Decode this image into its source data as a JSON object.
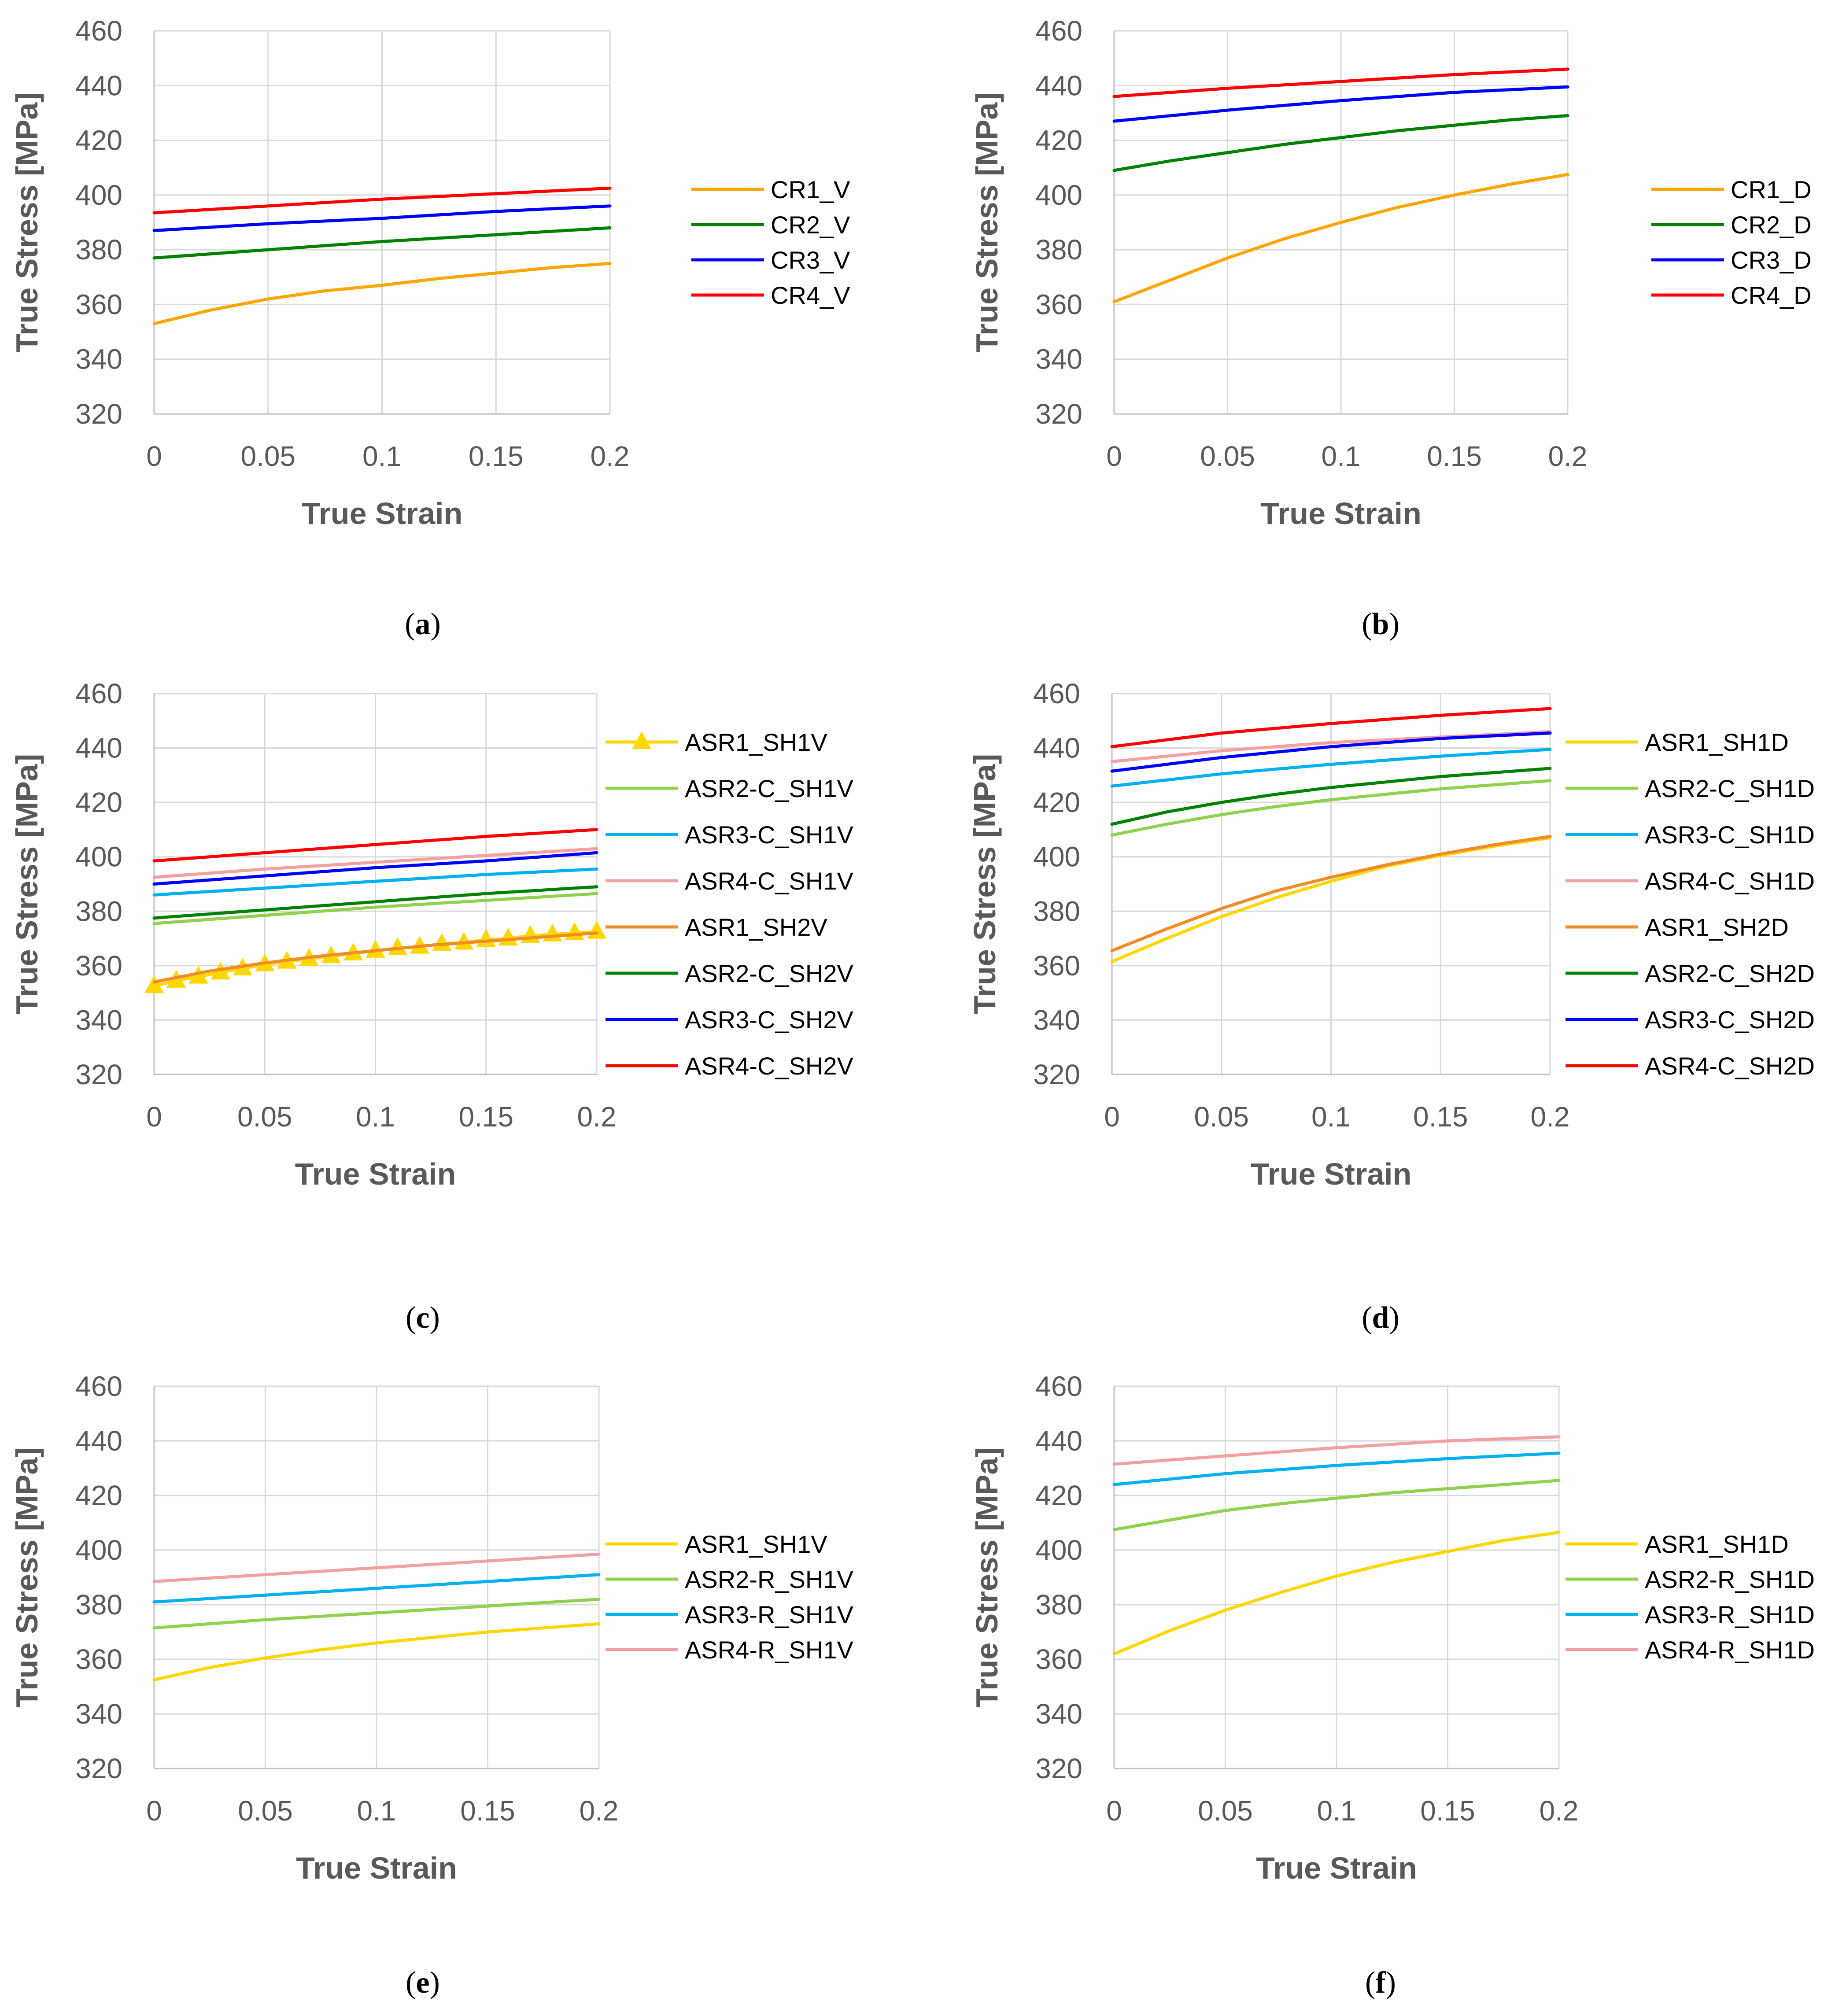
{
  "chart_data": [
    {
      "type": "line",
      "caption_letter": "a",
      "xlabel": "True Strain",
      "ylabel": "True Stress [MPa]",
      "xlim": [
        0,
        0.2
      ],
      "ylim": [
        320,
        460
      ],
      "x_ticks": [
        "0",
        "0.05",
        "0.1",
        "0.15",
        "0.2"
      ],
      "y_ticks": [
        "320",
        "340",
        "360",
        "380",
        "400",
        "420",
        "440",
        "460"
      ],
      "grid": true,
      "legend_position": "right",
      "series": [
        {
          "name": "CR1_V",
          "color": "#ffa500",
          "x": [
            0,
            0.025,
            0.05,
            0.075,
            0.1,
            0.125,
            0.15,
            0.175,
            0.2
          ],
          "values": [
            353,
            358,
            362,
            365,
            367,
            369.5,
            371.5,
            373.5,
            375
          ]
        },
        {
          "name": "CR2_V",
          "color": "#008000",
          "x": [
            0,
            0.05,
            0.1,
            0.15,
            0.2
          ],
          "values": [
            377,
            380,
            383,
            385.5,
            388
          ]
        },
        {
          "name": "CR3_V",
          "color": "#0000ff",
          "x": [
            0,
            0.05,
            0.1,
            0.15,
            0.2
          ],
          "values": [
            387,
            389.5,
            391.5,
            394,
            396
          ]
        },
        {
          "name": "CR4_V",
          "color": "#ff0000",
          "x": [
            0,
            0.05,
            0.1,
            0.15,
            0.2
          ],
          "values": [
            393.5,
            396,
            398.5,
            400.5,
            402.5
          ]
        }
      ]
    },
    {
      "type": "line",
      "caption_letter": "b",
      "xlabel": "True Strain",
      "ylabel": "True Stress [MPa]",
      "xlim": [
        0,
        0.2
      ],
      "ylim": [
        320,
        460
      ],
      "x_ticks": [
        "0",
        "0.05",
        "0.1",
        "0.15",
        "0.2"
      ],
      "y_ticks": [
        "320",
        "340",
        "360",
        "380",
        "400",
        "420",
        "440",
        "460"
      ],
      "grid": true,
      "legend_position": "right",
      "series": [
        {
          "name": "CR1_D",
          "color": "#ffa500",
          "x": [
            0,
            0.025,
            0.05,
            0.075,
            0.1,
            0.125,
            0.15,
            0.175,
            0.2
          ],
          "values": [
            361,
            369,
            377,
            384,
            390,
            395.5,
            400,
            404,
            407.5
          ]
        },
        {
          "name": "CR2_D",
          "color": "#008000",
          "x": [
            0,
            0.025,
            0.05,
            0.075,
            0.1,
            0.125,
            0.15,
            0.175,
            0.2
          ],
          "values": [
            409,
            412.5,
            415.5,
            418.5,
            421,
            423.5,
            425.5,
            427.5,
            429
          ]
        },
        {
          "name": "CR3_D",
          "color": "#0000ff",
          "x": [
            0,
            0.05,
            0.1,
            0.15,
            0.2
          ],
          "values": [
            427,
            431,
            434.5,
            437.5,
            439.5
          ]
        },
        {
          "name": "CR4_D",
          "color": "#ff0000",
          "x": [
            0,
            0.05,
            0.1,
            0.15,
            0.2
          ],
          "values": [
            436,
            439,
            441.5,
            444,
            446
          ]
        }
      ]
    },
    {
      "type": "line",
      "caption_letter": "c",
      "xlabel": "True Strain",
      "ylabel": "True Stress [MPa]",
      "xlim": [
        0,
        0.2
      ],
      "ylim": [
        320,
        460
      ],
      "x_ticks": [
        "0",
        "0.05",
        "0.1",
        "0.15",
        "0.2"
      ],
      "y_ticks": [
        "320",
        "340",
        "360",
        "380",
        "400",
        "420",
        "440",
        "460"
      ],
      "grid": true,
      "legend_position": "right",
      "series": [
        {
          "name": "ASR1_SH1V",
          "color": "#ffd700",
          "marker": "triangle",
          "x": [
            0,
            0.01,
            0.02,
            0.03,
            0.04,
            0.05,
            0.06,
            0.07,
            0.08,
            0.09,
            0.1,
            0.11,
            0.12,
            0.13,
            0.14,
            0.15,
            0.16,
            0.17,
            0.18,
            0.19,
            0.2
          ],
          "values": [
            352.5,
            354.5,
            356,
            357.5,
            359,
            360.5,
            361.5,
            362.5,
            363.5,
            364.5,
            365.5,
            366.5,
            367,
            368,
            368.5,
            369.5,
            370,
            371,
            371.5,
            372,
            372.5
          ]
        },
        {
          "name": "ASR2-C_SH1V",
          "color": "#92d050",
          "x": [
            0,
            0.05,
            0.1,
            0.15,
            0.2
          ],
          "values": [
            375.5,
            378.5,
            381.5,
            384,
            386.5
          ]
        },
        {
          "name": "ASR3-C_SH1V",
          "color": "#00b0f0",
          "x": [
            0,
            0.05,
            0.1,
            0.15,
            0.2
          ],
          "values": [
            386,
            388.5,
            391,
            393.5,
            395.5
          ]
        },
        {
          "name": "ASR4-C_SH1V",
          "color": "#f4a0a0",
          "x": [
            0,
            0.05,
            0.1,
            0.15,
            0.2
          ],
          "values": [
            392.5,
            395.5,
            398,
            400.5,
            403
          ]
        },
        {
          "name": "ASR1_SH2V",
          "color": "#f28c28",
          "x": [
            0,
            0.025,
            0.05,
            0.075,
            0.1,
            0.125,
            0.15,
            0.175,
            0.2
          ],
          "values": [
            354,
            358,
            361,
            363.5,
            365.5,
            367.5,
            369,
            370.5,
            372
          ]
        },
        {
          "name": "ASR2-C_SH2V",
          "color": "#008000",
          "x": [
            0,
            0.05,
            0.1,
            0.15,
            0.2
          ],
          "values": [
            377.5,
            380.5,
            383.5,
            386.5,
            389
          ]
        },
        {
          "name": "ASR3-C_SH2V",
          "color": "#0000ff",
          "x": [
            0,
            0.05,
            0.1,
            0.15,
            0.2
          ],
          "values": [
            390,
            393,
            396,
            398.5,
            401.5
          ]
        },
        {
          "name": "ASR4-C_SH2V",
          "color": "#ff0000",
          "x": [
            0,
            0.05,
            0.1,
            0.15,
            0.2
          ],
          "values": [
            398.5,
            401.5,
            404.5,
            407.5,
            410
          ]
        }
      ]
    },
    {
      "type": "line",
      "caption_letter": "d",
      "xlabel": "True Strain",
      "ylabel": "True Stress [MPa]",
      "xlim": [
        0,
        0.2
      ],
      "ylim": [
        320,
        460
      ],
      "x_ticks": [
        "0",
        "0.05",
        "0.1",
        "0.15",
        "0.2"
      ],
      "y_ticks": [
        "320",
        "340",
        "360",
        "380",
        "400",
        "420",
        "440",
        "460"
      ],
      "grid": true,
      "legend_position": "right",
      "series": [
        {
          "name": "ASR1_SH1D",
          "color": "#ffd700",
          "x": [
            0,
            0.025,
            0.05,
            0.075,
            0.1,
            0.125,
            0.15,
            0.175,
            0.2
          ],
          "values": [
            361.5,
            370,
            378,
            385,
            391,
            396.5,
            400.5,
            404,
            407
          ]
        },
        {
          "name": "ASR2-C_SH1D",
          "color": "#92d050",
          "x": [
            0,
            0.025,
            0.05,
            0.075,
            0.1,
            0.125,
            0.15,
            0.175,
            0.2
          ],
          "values": [
            408,
            412,
            415.5,
            418.5,
            421,
            423,
            425,
            426.5,
            428
          ]
        },
        {
          "name": "ASR3-C_SH1D",
          "color": "#00b0f0",
          "x": [
            0,
            0.05,
            0.1,
            0.15,
            0.2
          ],
          "values": [
            426,
            430.5,
            434,
            437,
            439.5
          ]
        },
        {
          "name": "ASR4-C_SH1D",
          "color": "#f4a0a0",
          "x": [
            0,
            0.05,
            0.1,
            0.15,
            0.2
          ],
          "values": [
            435,
            439,
            442,
            444,
            446
          ]
        },
        {
          "name": "ASR1_SH2D",
          "color": "#f28c28",
          "x": [
            0,
            0.025,
            0.05,
            0.075,
            0.1,
            0.125,
            0.15,
            0.175,
            0.2
          ],
          "values": [
            365.5,
            373.5,
            381,
            387.5,
            392.5,
            397,
            401,
            404.5,
            407.5
          ]
        },
        {
          "name": "ASR2-C_SH2D",
          "color": "#008000",
          "x": [
            0,
            0.025,
            0.05,
            0.075,
            0.1,
            0.125,
            0.15,
            0.175,
            0.2
          ],
          "values": [
            412,
            416.5,
            420,
            423,
            425.5,
            427.5,
            429.5,
            431,
            432.5
          ]
        },
        {
          "name": "ASR3-C_SH2D",
          "color": "#0000ff",
          "x": [
            0,
            0.05,
            0.1,
            0.15,
            0.2
          ],
          "values": [
            431.5,
            436.5,
            440.5,
            443.5,
            445.5
          ]
        },
        {
          "name": "ASR4-C_SH2D",
          "color": "#ff0000",
          "x": [
            0,
            0.05,
            0.1,
            0.15,
            0.2
          ],
          "values": [
            440.5,
            445.5,
            449,
            452,
            454.5
          ]
        }
      ]
    },
    {
      "type": "line",
      "caption_letter": "e",
      "xlabel": "True Strain",
      "ylabel": "True Stress [MPa]",
      "xlim": [
        0,
        0.2
      ],
      "ylim": [
        320,
        460
      ],
      "x_ticks": [
        "0",
        "0.05",
        "0.1",
        "0.15",
        "0.2"
      ],
      "y_ticks": [
        "320",
        "340",
        "360",
        "380",
        "400",
        "420",
        "440",
        "460"
      ],
      "grid": true,
      "legend_position": "right",
      "series": [
        {
          "name": "ASR1_SH1V",
          "color": "#ffd700",
          "x": [
            0,
            0.025,
            0.05,
            0.075,
            0.1,
            0.125,
            0.15,
            0.175,
            0.2
          ],
          "values": [
            352.5,
            357,
            360.5,
            363.5,
            366,
            368,
            370,
            371.5,
            373
          ]
        },
        {
          "name": "ASR2-R_SH1V",
          "color": "#92d050",
          "x": [
            0,
            0.05,
            0.1,
            0.15,
            0.2
          ],
          "values": [
            371.5,
            374.5,
            377,
            379.5,
            382
          ]
        },
        {
          "name": "ASR3-R_SH1V",
          "color": "#00b0f0",
          "x": [
            0,
            0.05,
            0.1,
            0.15,
            0.2
          ],
          "values": [
            381,
            383.5,
            386,
            388.5,
            391
          ]
        },
        {
          "name": "ASR4-R_SH1V",
          "color": "#f4a0a0",
          "x": [
            0,
            0.05,
            0.1,
            0.15,
            0.2
          ],
          "values": [
            388.5,
            391,
            393.5,
            396,
            398.5
          ]
        }
      ]
    },
    {
      "type": "line",
      "caption_letter": "f",
      "xlabel": "True Strain",
      "ylabel": "True Stress [MPa]",
      "xlim": [
        0,
        0.2
      ],
      "ylim": [
        320,
        460
      ],
      "x_ticks": [
        "0",
        "0.05",
        "0.1",
        "0.15",
        "0.2"
      ],
      "y_ticks": [
        "320",
        "340",
        "360",
        "380",
        "400",
        "420",
        "440",
        "460"
      ],
      "grid": true,
      "legend_position": "right",
      "series": [
        {
          "name": "ASR1_SH1D",
          "color": "#ffd700",
          "x": [
            0,
            0.025,
            0.05,
            0.075,
            0.1,
            0.125,
            0.15,
            0.175,
            0.2
          ],
          "values": [
            362,
            370.5,
            378,
            384.5,
            390.5,
            395.5,
            399.5,
            403.5,
            406.5
          ]
        },
        {
          "name": "ASR2-R_SH1D",
          "color": "#92d050",
          "x": [
            0,
            0.025,
            0.05,
            0.075,
            0.1,
            0.125,
            0.15,
            0.175,
            0.2
          ],
          "values": [
            407.5,
            411,
            414.5,
            417,
            419,
            421,
            422.5,
            424,
            425.5
          ]
        },
        {
          "name": "ASR3-R_SH1D",
          "color": "#00b0f0",
          "x": [
            0,
            0.05,
            0.1,
            0.15,
            0.2
          ],
          "values": [
            424,
            428,
            431,
            433.5,
            435.5
          ]
        },
        {
          "name": "ASR4-R_SH1D",
          "color": "#f4a0a0",
          "x": [
            0,
            0.05,
            0.1,
            0.15,
            0.2
          ],
          "values": [
            431.5,
            434.5,
            437.5,
            440,
            441.5
          ]
        }
      ]
    }
  ]
}
